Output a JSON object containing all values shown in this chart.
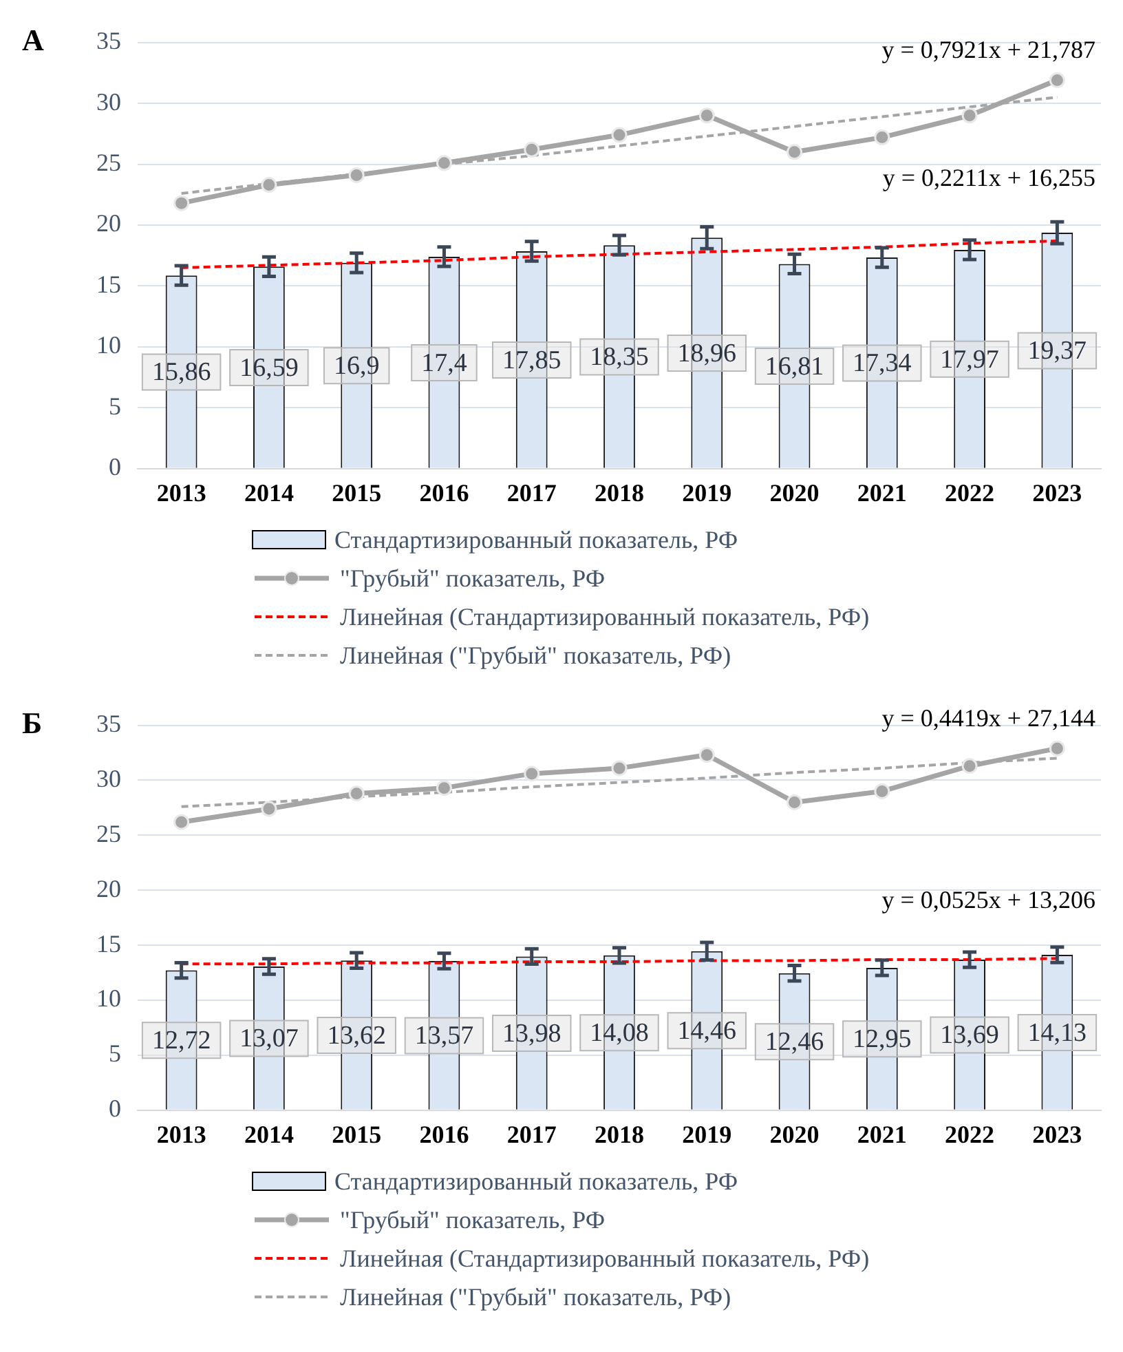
{
  "chart_data": [
    {
      "type": "bar",
      "title": "А",
      "categories": [
        "2013",
        "2014",
        "2015",
        "2016",
        "2017",
        "2018",
        "2019",
        "2020",
        "2021",
        "2022",
        "2023"
      ],
      "ylim": [
        0,
        35
      ],
      "yticks": [
        0,
        5,
        10,
        15,
        20,
        25,
        30,
        35
      ],
      "grid": "y",
      "legend": "bottom",
      "annotations": [
        "y = 0,2211x + 16,255",
        "y = 0,7921x + 21,787"
      ],
      "series": [
        {
          "name": "Стандартизированный показатель, РФ",
          "color": "#dae6f4",
          "values": [
            15.86,
            16.59,
            16.9,
            17.4,
            17.85,
            18.35,
            18.96,
            16.81,
            17.34,
            17.97,
            19.37
          ],
          "errors": [
            0.8,
            0.8,
            0.8,
            0.8,
            0.8,
            0.8,
            0.9,
            0.8,
            0.8,
            0.8,
            0.9
          ],
          "value_labels": [
            "15,86",
            "16,59",
            "16,9",
            "17,4",
            "17,85",
            "18,35",
            "18,96",
            "16,81",
            "17,34",
            "17,97",
            "19,37"
          ]
        },
        {
          "name": "\"Грубый\" показатель, РФ",
          "type": "line",
          "color": "#a5a5a5",
          "marker": "circle",
          "line_style": "solid",
          "values": [
            21.8,
            23.3,
            24.1,
            25.1,
            26.2,
            27.4,
            29.0,
            26.0,
            27.2,
            29.0,
            31.9
          ]
        },
        {
          "name": "Линейная (Стандартизированный показатель, РФ)",
          "type": "line",
          "color": "#ff0000",
          "marker": "none",
          "line_style": "dashed",
          "values": [
            16.5,
            16.7,
            16.9,
            17.1,
            17.4,
            17.6,
            17.8,
            18.0,
            18.2,
            18.5,
            18.7
          ]
        },
        {
          "name": "Линейная (\"Грубый\" показатель, РФ)",
          "type": "line",
          "color": "#a5a5a5",
          "marker": "none",
          "line_style": "dashed",
          "values": [
            22.6,
            23.4,
            24.2,
            25.0,
            25.7,
            26.5,
            27.3,
            28.1,
            28.9,
            29.7,
            30.5
          ]
        }
      ]
    },
    {
      "type": "bar",
      "title": "Б",
      "categories": [
        "2013",
        "2014",
        "2015",
        "2016",
        "2017",
        "2018",
        "2019",
        "2020",
        "2021",
        "2022",
        "2023"
      ],
      "ylim": [
        0,
        35
      ],
      "yticks": [
        0,
        5,
        10,
        15,
        20,
        25,
        30,
        35
      ],
      "grid": "y",
      "legend": "bottom",
      "annotations": [
        "y = 0,0525x + 13,206",
        "y = 0,4419x + 27,144"
      ],
      "series": [
        {
          "name": "Стандартизированный показатель, РФ",
          "color": "#dae6f4",
          "values": [
            12.72,
            13.07,
            13.62,
            13.57,
            13.98,
            14.08,
            14.46,
            12.46,
            12.95,
            13.69,
            14.13
          ],
          "errors": [
            0.7,
            0.7,
            0.7,
            0.7,
            0.7,
            0.7,
            0.8,
            0.7,
            0.7,
            0.7,
            0.7
          ],
          "value_labels": [
            "12,72",
            "13,07",
            "13,62",
            "13,57",
            "13,98",
            "14,08",
            "14,46",
            "12,46",
            "12,95",
            "13,69",
            "14,13"
          ]
        },
        {
          "name": "\"Грубый\" показатель, РФ",
          "type": "line",
          "color": "#a5a5a5",
          "marker": "circle",
          "line_style": "solid",
          "values": [
            26.2,
            27.4,
            28.8,
            29.3,
            30.6,
            31.1,
            32.3,
            28.0,
            29.0,
            31.3,
            32.9
          ]
        },
        {
          "name": "Линейная (Стандартизированный показатель, РФ)",
          "type": "line",
          "color": "#ff0000",
          "marker": "none",
          "line_style": "dashed",
          "values": [
            13.3,
            13.3,
            13.4,
            13.4,
            13.5,
            13.5,
            13.6,
            13.6,
            13.7,
            13.7,
            13.8
          ]
        },
        {
          "name": "Линейная (\"Грубый\" показатель, РФ)",
          "type": "line",
          "color": "#a5a5a5",
          "marker": "none",
          "line_style": "dashed",
          "values": [
            27.6,
            28.0,
            28.5,
            28.9,
            29.4,
            29.8,
            30.2,
            30.7,
            31.1,
            31.6,
            32.0
          ]
        }
      ]
    }
  ]
}
